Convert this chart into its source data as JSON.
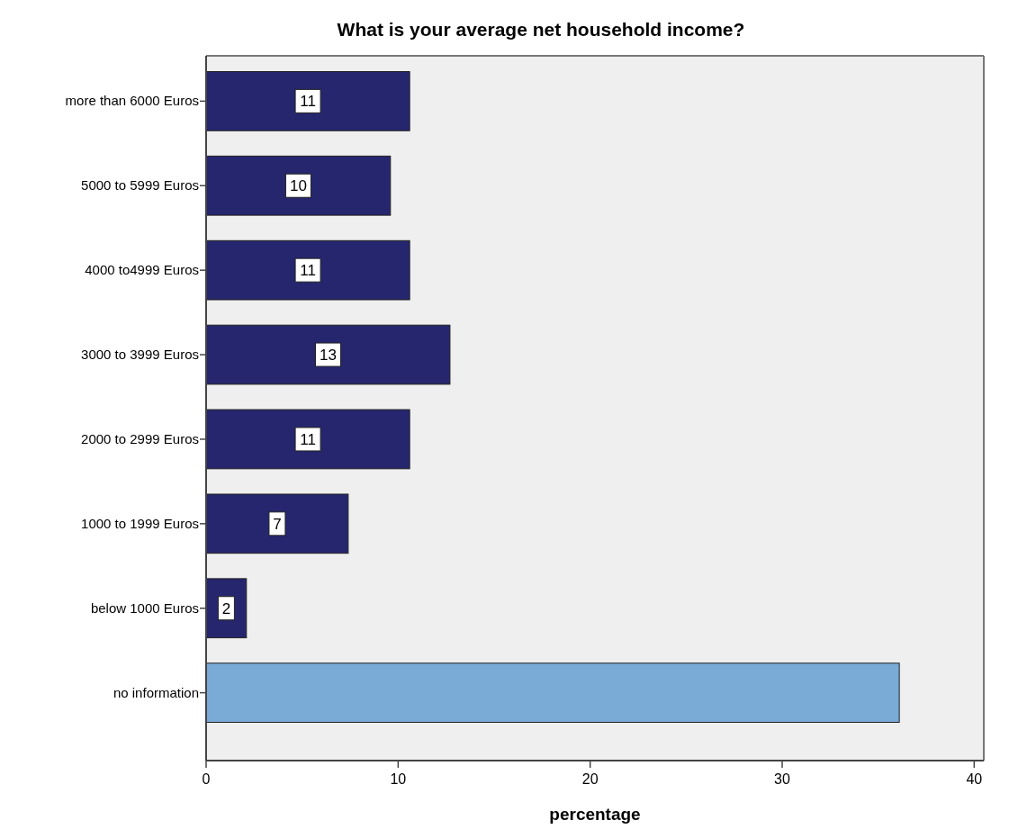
{
  "chart_data": {
    "type": "bar",
    "orientation": "horizontal",
    "title": "What is your average net household income?",
    "xlabel": "percentage",
    "categories": [
      "more than 6000 Euros",
      "5000 to 5999 Euros",
      "4000 to4999 Euros",
      "3000 to 3999 Euros",
      "2000 to 2999 Euros",
      "1000 to 1999 Euros",
      "below 1000 Euros",
      "no information"
    ],
    "values": [
      10.6,
      9.6,
      10.6,
      12.7,
      10.6,
      7.4,
      2.1,
      36.1
    ],
    "value_labels": [
      "11",
      "10",
      "11",
      "13",
      "11",
      "7",
      "2",
      null
    ],
    "colors": [
      "#26266e",
      "#26266e",
      "#26266e",
      "#26266e",
      "#26266e",
      "#26266e",
      "#26266e",
      "#7aaad6"
    ],
    "xlim": [
      0,
      40.5
    ],
    "xticks": [
      0,
      10,
      20,
      30,
      40
    ],
    "grid": false
  }
}
